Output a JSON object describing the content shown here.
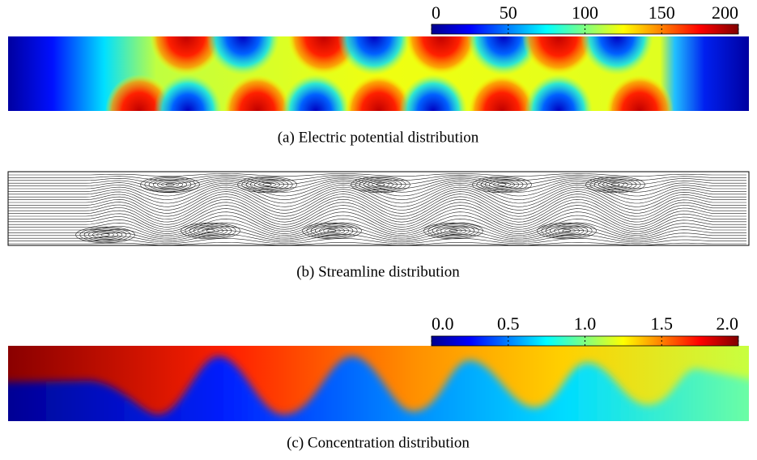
{
  "panels": [
    {
      "caption": "(a) Electric potential distribution",
      "colorbar": {
        "lim": [
          0,
          200
        ],
        "ticks": [
          0,
          50,
          100,
          150,
          200
        ]
      }
    },
    {
      "caption": "(b) Streamline distribution"
    },
    {
      "caption": "(c) Concentration distribution",
      "colorbar": {
        "lim": [
          0,
          2
        ],
        "ticks": [
          {
            "value": 0,
            "label": "0.0"
          },
          {
            "value": 0.5,
            "label": "0.5"
          },
          {
            "value": 1,
            "label": "1.0"
          },
          {
            "value": 1.5,
            "label": "1.5"
          },
          {
            "value": 2,
            "label": "2.0"
          }
        ]
      }
    }
  ]
}
